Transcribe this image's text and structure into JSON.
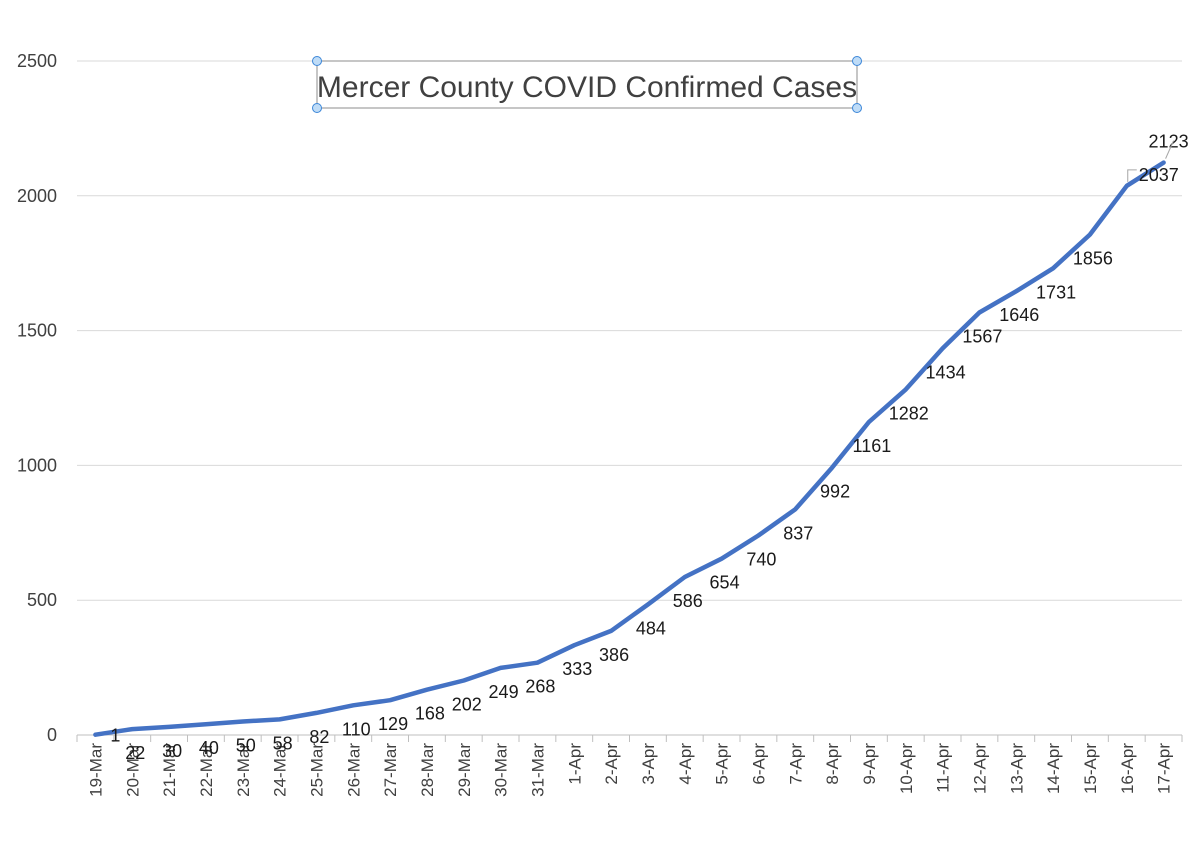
{
  "chart_data": {
    "type": "line",
    "title": "Mercer County COVID Confirmed Cases",
    "xlabel": "",
    "ylabel": "",
    "ylim": [
      0,
      2500
    ],
    "yticks": [
      0,
      500,
      1000,
      1500,
      2000,
      2500
    ],
    "grid": true,
    "legend": "none",
    "categories": [
      "19-Mar",
      "20-Mar",
      "21-Mar",
      "22-Mar",
      "23-Mar",
      "24-Mar",
      "25-Mar",
      "26-Mar",
      "27-Mar",
      "28-Mar",
      "29-Mar",
      "30-Mar",
      "31-Mar",
      "1-Apr",
      "2-Apr",
      "3-Apr",
      "4-Apr",
      "5-Apr",
      "6-Apr",
      "7-Apr",
      "8-Apr",
      "9-Apr",
      "10-Apr",
      "11-Apr",
      "12-Apr",
      "13-Apr",
      "14-Apr",
      "15-Apr",
      "16-Apr",
      "17-Apr"
    ],
    "series": [
      {
        "name": "Confirmed Cases",
        "color": "#4472C4",
        "values": [
          1,
          22,
          30,
          40,
          50,
          58,
          82,
          110,
          129,
          168,
          202,
          249,
          268,
          333,
          386,
          484,
          586,
          654,
          740,
          837,
          992,
          1161,
          1282,
          1434,
          1567,
          1646,
          1731,
          1856,
          2037,
          2123
        ]
      }
    ]
  }
}
